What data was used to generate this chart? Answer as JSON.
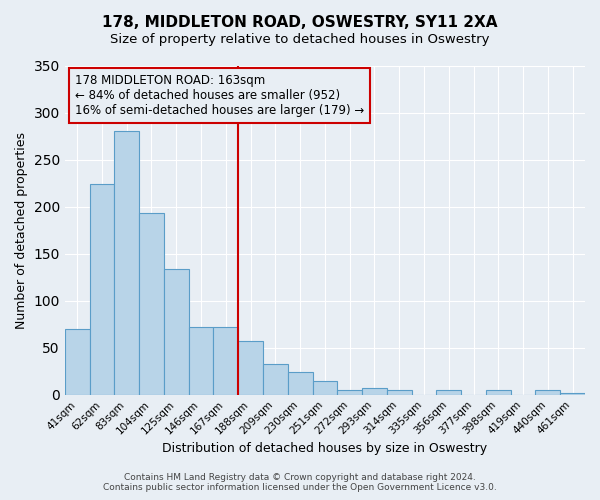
{
  "title": "178, MIDDLETON ROAD, OSWESTRY, SY11 2XA",
  "subtitle": "Size of property relative to detached houses in Oswestry",
  "xlabel": "Distribution of detached houses by size in Oswestry",
  "ylabel": "Number of detached properties",
  "bin_labels": [
    "41sqm",
    "62sqm",
    "83sqm",
    "104sqm",
    "125sqm",
    "146sqm",
    "167sqm",
    "188sqm",
    "209sqm",
    "230sqm",
    "251sqm",
    "272sqm",
    "293sqm",
    "314sqm",
    "335sqm",
    "356sqm",
    "377sqm",
    "398sqm",
    "419sqm",
    "440sqm",
    "461sqm"
  ],
  "bar_values": [
    70,
    224,
    280,
    193,
    134,
    72,
    72,
    57,
    33,
    24,
    15,
    5,
    7,
    5,
    0,
    5,
    0,
    5,
    0,
    5,
    2
  ],
  "bar_color": "#b8d4e8",
  "bar_edge_color": "#5a9dc8",
  "vline_position": 6.5,
  "vline_color": "#cc0000",
  "ylim": [
    0,
    350
  ],
  "yticks": [
    0,
    50,
    100,
    150,
    200,
    250,
    300,
    350
  ],
  "annotation_box_text": "178 MIDDLETON ROAD: 163sqm\n← 84% of detached houses are smaller (952)\n16% of semi-detached houses are larger (179) →",
  "annotation_box_edge_color": "#cc0000",
  "footer_line1": "Contains HM Land Registry data © Crown copyright and database right 2024.",
  "footer_line2": "Contains public sector information licensed under the Open Government Licence v3.0.",
  "background_color": "#e8eef4",
  "grid_color": "#ffffff",
  "figsize": [
    6.0,
    5.0
  ],
  "dpi": 100
}
